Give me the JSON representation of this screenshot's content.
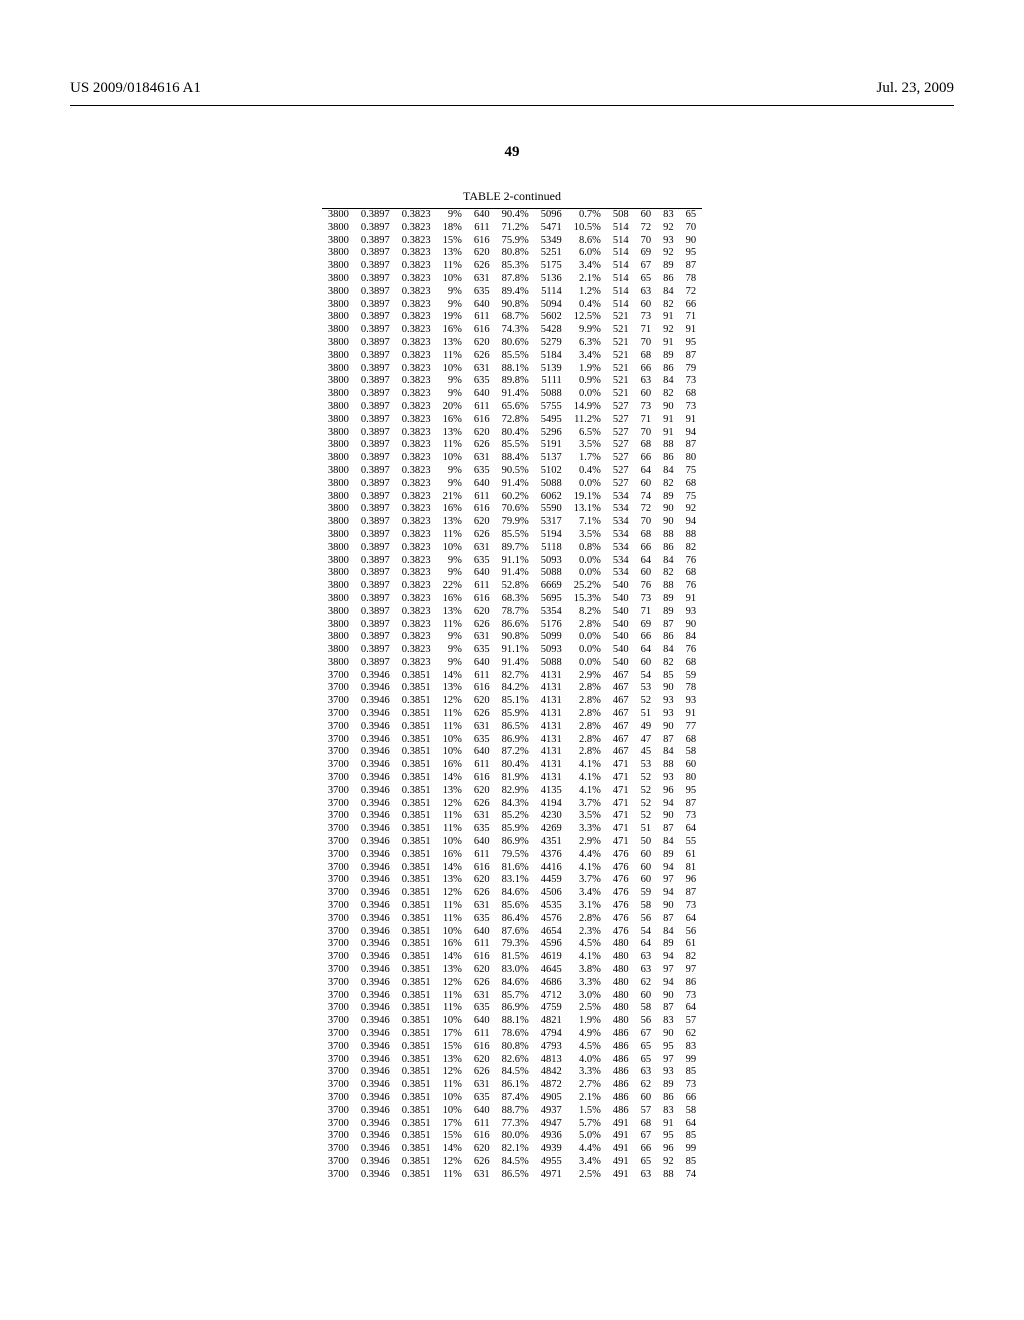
{
  "header": {
    "left": "US 2009/0184616 A1",
    "right": "Jul. 23, 2009"
  },
  "page_number": "49",
  "table_title": "TABLE 2-continued",
  "rows": [
    [
      "3800",
      "0.3897",
      "0.3823",
      "9%",
      "640",
      "90.4%",
      "5096",
      "0.7%",
      "508",
      "60",
      "83",
      "65"
    ],
    [
      "3800",
      "0.3897",
      "0.3823",
      "18%",
      "611",
      "71.2%",
      "5471",
      "10.5%",
      "514",
      "72",
      "92",
      "70"
    ],
    [
      "3800",
      "0.3897",
      "0.3823",
      "15%",
      "616",
      "75.9%",
      "5349",
      "8.6%",
      "514",
      "70",
      "93",
      "90"
    ],
    [
      "3800",
      "0.3897",
      "0.3823",
      "13%",
      "620",
      "80.8%",
      "5251",
      "6.0%",
      "514",
      "69",
      "92",
      "95"
    ],
    [
      "3800",
      "0.3897",
      "0.3823",
      "11%",
      "626",
      "85.3%",
      "5175",
      "3.4%",
      "514",
      "67",
      "89",
      "87"
    ],
    [
      "3800",
      "0.3897",
      "0.3823",
      "10%",
      "631",
      "87.8%",
      "5136",
      "2.1%",
      "514",
      "65",
      "86",
      "78"
    ],
    [
      "3800",
      "0.3897",
      "0.3823",
      "9%",
      "635",
      "89.4%",
      "5114",
      "1.2%",
      "514",
      "63",
      "84",
      "72"
    ],
    [
      "3800",
      "0.3897",
      "0.3823",
      "9%",
      "640",
      "90.8%",
      "5094",
      "0.4%",
      "514",
      "60",
      "82",
      "66"
    ],
    [
      "3800",
      "0.3897",
      "0.3823",
      "19%",
      "611",
      "68.7%",
      "5602",
      "12.5%",
      "521",
      "73",
      "91",
      "71"
    ],
    [
      "3800",
      "0.3897",
      "0.3823",
      "16%",
      "616",
      "74.3%",
      "5428",
      "9.9%",
      "521",
      "71",
      "92",
      "91"
    ],
    [
      "3800",
      "0.3897",
      "0.3823",
      "13%",
      "620",
      "80.6%",
      "5279",
      "6.3%",
      "521",
      "70",
      "91",
      "95"
    ],
    [
      "3800",
      "0.3897",
      "0.3823",
      "11%",
      "626",
      "85.5%",
      "5184",
      "3.4%",
      "521",
      "68",
      "89",
      "87"
    ],
    [
      "3800",
      "0.3897",
      "0.3823",
      "10%",
      "631",
      "88.1%",
      "5139",
      "1.9%",
      "521",
      "66",
      "86",
      "79"
    ],
    [
      "3800",
      "0.3897",
      "0.3823",
      "9%",
      "635",
      "89.8%",
      "5111",
      "0.9%",
      "521",
      "63",
      "84",
      "73"
    ],
    [
      "3800",
      "0.3897",
      "0.3823",
      "9%",
      "640",
      "91.4%",
      "5088",
      "0.0%",
      "521",
      "60",
      "82",
      "68"
    ],
    [
      "3800",
      "0.3897",
      "0.3823",
      "20%",
      "611",
      "65.6%",
      "5755",
      "14.9%",
      "527",
      "73",
      "90",
      "73"
    ],
    [
      "3800",
      "0.3897",
      "0.3823",
      "16%",
      "616",
      "72.8%",
      "5495",
      "11.2%",
      "527",
      "71",
      "91",
      "91"
    ],
    [
      "3800",
      "0.3897",
      "0.3823",
      "13%",
      "620",
      "80.4%",
      "5296",
      "6.5%",
      "527",
      "70",
      "91",
      "94"
    ],
    [
      "3800",
      "0.3897",
      "0.3823",
      "11%",
      "626",
      "85.5%",
      "5191",
      "3.5%",
      "527",
      "68",
      "88",
      "87"
    ],
    [
      "3800",
      "0.3897",
      "0.3823",
      "10%",
      "631",
      "88.4%",
      "5137",
      "1.7%",
      "527",
      "66",
      "86",
      "80"
    ],
    [
      "3800",
      "0.3897",
      "0.3823",
      "9%",
      "635",
      "90.5%",
      "5102",
      "0.4%",
      "527",
      "64",
      "84",
      "75"
    ],
    [
      "3800",
      "0.3897",
      "0.3823",
      "9%",
      "640",
      "91.4%",
      "5088",
      "0.0%",
      "527",
      "60",
      "82",
      "68"
    ],
    [
      "3800",
      "0.3897",
      "0.3823",
      "21%",
      "611",
      "60.2%",
      "6062",
      "19.1%",
      "534",
      "74",
      "89",
      "75"
    ],
    [
      "3800",
      "0.3897",
      "0.3823",
      "16%",
      "616",
      "70.6%",
      "5590",
      "13.1%",
      "534",
      "72",
      "90",
      "92"
    ],
    [
      "3800",
      "0.3897",
      "0.3823",
      "13%",
      "620",
      "79.9%",
      "5317",
      "7.1%",
      "534",
      "70",
      "90",
      "94"
    ],
    [
      "3800",
      "0.3897",
      "0.3823",
      "11%",
      "626",
      "85.5%",
      "5194",
      "3.5%",
      "534",
      "68",
      "88",
      "88"
    ],
    [
      "3800",
      "0.3897",
      "0.3823",
      "10%",
      "631",
      "89.7%",
      "5118",
      "0.8%",
      "534",
      "66",
      "86",
      "82"
    ],
    [
      "3800",
      "0.3897",
      "0.3823",
      "9%",
      "635",
      "91.1%",
      "5093",
      "0.0%",
      "534",
      "64",
      "84",
      "76"
    ],
    [
      "3800",
      "0.3897",
      "0.3823",
      "9%",
      "640",
      "91.4%",
      "5088",
      "0.0%",
      "534",
      "60",
      "82",
      "68"
    ],
    [
      "3800",
      "0.3897",
      "0.3823",
      "22%",
      "611",
      "52.8%",
      "6669",
      "25.2%",
      "540",
      "76",
      "88",
      "76"
    ],
    [
      "3800",
      "0.3897",
      "0.3823",
      "16%",
      "616",
      "68.3%",
      "5695",
      "15.3%",
      "540",
      "73",
      "89",
      "91"
    ],
    [
      "3800",
      "0.3897",
      "0.3823",
      "13%",
      "620",
      "78.7%",
      "5354",
      "8.2%",
      "540",
      "71",
      "89",
      "93"
    ],
    [
      "3800",
      "0.3897",
      "0.3823",
      "11%",
      "626",
      "86.6%",
      "5176",
      "2.8%",
      "540",
      "69",
      "87",
      "90"
    ],
    [
      "3800",
      "0.3897",
      "0.3823",
      "9%",
      "631",
      "90.8%",
      "5099",
      "0.0%",
      "540",
      "66",
      "86",
      "84"
    ],
    [
      "3800",
      "0.3897",
      "0.3823",
      "9%",
      "635",
      "91.1%",
      "5093",
      "0.0%",
      "540",
      "64",
      "84",
      "76"
    ],
    [
      "3800",
      "0.3897",
      "0.3823",
      "9%",
      "640",
      "91.4%",
      "5088",
      "0.0%",
      "540",
      "60",
      "82",
      "68"
    ],
    [
      "3700",
      "0.3946",
      "0.3851",
      "14%",
      "611",
      "82.7%",
      "4131",
      "2.9%",
      "467",
      "54",
      "85",
      "59"
    ],
    [
      "3700",
      "0.3946",
      "0.3851",
      "13%",
      "616",
      "84.2%",
      "4131",
      "2.8%",
      "467",
      "53",
      "90",
      "78"
    ],
    [
      "3700",
      "0.3946",
      "0.3851",
      "12%",
      "620",
      "85.1%",
      "4131",
      "2.8%",
      "467",
      "52",
      "93",
      "93"
    ],
    [
      "3700",
      "0.3946",
      "0.3851",
      "11%",
      "626",
      "85.9%",
      "4131",
      "2.8%",
      "467",
      "51",
      "93",
      "91"
    ],
    [
      "3700",
      "0.3946",
      "0.3851",
      "11%",
      "631",
      "86.5%",
      "4131",
      "2.8%",
      "467",
      "49",
      "90",
      "77"
    ],
    [
      "3700",
      "0.3946",
      "0.3851",
      "10%",
      "635",
      "86.9%",
      "4131",
      "2.8%",
      "467",
      "47",
      "87",
      "68"
    ],
    [
      "3700",
      "0.3946",
      "0.3851",
      "10%",
      "640",
      "87.2%",
      "4131",
      "2.8%",
      "467",
      "45",
      "84",
      "58"
    ],
    [
      "3700",
      "0.3946",
      "0.3851",
      "16%",
      "611",
      "80.4%",
      "4131",
      "4.1%",
      "471",
      "53",
      "88",
      "60"
    ],
    [
      "3700",
      "0.3946",
      "0.3851",
      "14%",
      "616",
      "81.9%",
      "4131",
      "4.1%",
      "471",
      "52",
      "93",
      "80"
    ],
    [
      "3700",
      "0.3946",
      "0.3851",
      "13%",
      "620",
      "82.9%",
      "4135",
      "4.1%",
      "471",
      "52",
      "96",
      "95"
    ],
    [
      "3700",
      "0.3946",
      "0.3851",
      "12%",
      "626",
      "84.3%",
      "4194",
      "3.7%",
      "471",
      "52",
      "94",
      "87"
    ],
    [
      "3700",
      "0.3946",
      "0.3851",
      "11%",
      "631",
      "85.2%",
      "4230",
      "3.5%",
      "471",
      "52",
      "90",
      "73"
    ],
    [
      "3700",
      "0.3946",
      "0.3851",
      "11%",
      "635",
      "85.9%",
      "4269",
      "3.3%",
      "471",
      "51",
      "87",
      "64"
    ],
    [
      "3700",
      "0.3946",
      "0.3851",
      "10%",
      "640",
      "86.9%",
      "4351",
      "2.9%",
      "471",
      "50",
      "84",
      "55"
    ],
    [
      "3700",
      "0.3946",
      "0.3851",
      "16%",
      "611",
      "79.5%",
      "4376",
      "4.4%",
      "476",
      "60",
      "89",
      "61"
    ],
    [
      "3700",
      "0.3946",
      "0.3851",
      "14%",
      "616",
      "81.6%",
      "4416",
      "4.1%",
      "476",
      "60",
      "94",
      "81"
    ],
    [
      "3700",
      "0.3946",
      "0.3851",
      "13%",
      "620",
      "83.1%",
      "4459",
      "3.7%",
      "476",
      "60",
      "97",
      "96"
    ],
    [
      "3700",
      "0.3946",
      "0.3851",
      "12%",
      "626",
      "84.6%",
      "4506",
      "3.4%",
      "476",
      "59",
      "94",
      "87"
    ],
    [
      "3700",
      "0.3946",
      "0.3851",
      "11%",
      "631",
      "85.6%",
      "4535",
      "3.1%",
      "476",
      "58",
      "90",
      "73"
    ],
    [
      "3700",
      "0.3946",
      "0.3851",
      "11%",
      "635",
      "86.4%",
      "4576",
      "2.8%",
      "476",
      "56",
      "87",
      "64"
    ],
    [
      "3700",
      "0.3946",
      "0.3851",
      "10%",
      "640",
      "87.6%",
      "4654",
      "2.3%",
      "476",
      "54",
      "84",
      "56"
    ],
    [
      "3700",
      "0.3946",
      "0.3851",
      "16%",
      "611",
      "79.3%",
      "4596",
      "4.5%",
      "480",
      "64",
      "89",
      "61"
    ],
    [
      "3700",
      "0.3946",
      "0.3851",
      "14%",
      "616",
      "81.5%",
      "4619",
      "4.1%",
      "480",
      "63",
      "94",
      "82"
    ],
    [
      "3700",
      "0.3946",
      "0.3851",
      "13%",
      "620",
      "83.0%",
      "4645",
      "3.8%",
      "480",
      "63",
      "97",
      "97"
    ],
    [
      "3700",
      "0.3946",
      "0.3851",
      "12%",
      "626",
      "84.6%",
      "4686",
      "3.3%",
      "480",
      "62",
      "94",
      "86"
    ],
    [
      "3700",
      "0.3946",
      "0.3851",
      "11%",
      "631",
      "85.7%",
      "4712",
      "3.0%",
      "480",
      "60",
      "90",
      "73"
    ],
    [
      "3700",
      "0.3946",
      "0.3851",
      "11%",
      "635",
      "86.9%",
      "4759",
      "2.5%",
      "480",
      "58",
      "87",
      "64"
    ],
    [
      "3700",
      "0.3946",
      "0.3851",
      "10%",
      "640",
      "88.1%",
      "4821",
      "1.9%",
      "480",
      "56",
      "83",
      "57"
    ],
    [
      "3700",
      "0.3946",
      "0.3851",
      "17%",
      "611",
      "78.6%",
      "4794",
      "4.9%",
      "486",
      "67",
      "90",
      "62"
    ],
    [
      "3700",
      "0.3946",
      "0.3851",
      "15%",
      "616",
      "80.8%",
      "4793",
      "4.5%",
      "486",
      "65",
      "95",
      "83"
    ],
    [
      "3700",
      "0.3946",
      "0.3851",
      "13%",
      "620",
      "82.6%",
      "4813",
      "4.0%",
      "486",
      "65",
      "97",
      "99"
    ],
    [
      "3700",
      "0.3946",
      "0.3851",
      "12%",
      "626",
      "84.5%",
      "4842",
      "3.3%",
      "486",
      "63",
      "93",
      "85"
    ],
    [
      "3700",
      "0.3946",
      "0.3851",
      "11%",
      "631",
      "86.1%",
      "4872",
      "2.7%",
      "486",
      "62",
      "89",
      "73"
    ],
    [
      "3700",
      "0.3946",
      "0.3851",
      "10%",
      "635",
      "87.4%",
      "4905",
      "2.1%",
      "486",
      "60",
      "86",
      "66"
    ],
    [
      "3700",
      "0.3946",
      "0.3851",
      "10%",
      "640",
      "88.7%",
      "4937",
      "1.5%",
      "486",
      "57",
      "83",
      "58"
    ],
    [
      "3700",
      "0.3946",
      "0.3851",
      "17%",
      "611",
      "77.3%",
      "4947",
      "5.7%",
      "491",
      "68",
      "91",
      "64"
    ],
    [
      "3700",
      "0.3946",
      "0.3851",
      "15%",
      "616",
      "80.0%",
      "4936",
      "5.0%",
      "491",
      "67",
      "95",
      "85"
    ],
    [
      "3700",
      "0.3946",
      "0.3851",
      "14%",
      "620",
      "82.1%",
      "4939",
      "4.4%",
      "491",
      "66",
      "96",
      "99"
    ],
    [
      "3700",
      "0.3946",
      "0.3851",
      "12%",
      "626",
      "84.5%",
      "4955",
      "3.4%",
      "491",
      "65",
      "92",
      "85"
    ],
    [
      "3700",
      "0.3946",
      "0.3851",
      "11%",
      "631",
      "86.5%",
      "4971",
      "2.5%",
      "491",
      "63",
      "88",
      "74"
    ]
  ]
}
